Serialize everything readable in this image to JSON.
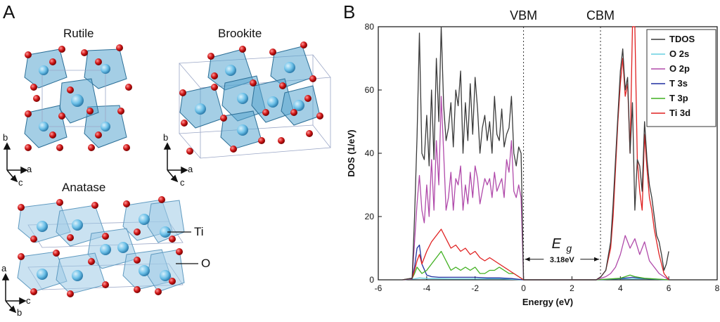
{
  "panels": {
    "a_label": "A",
    "b_label": "B"
  },
  "structures": {
    "rutile": "Rutile",
    "brookite": "Brookite",
    "anatase": "Anatase",
    "ti_label": "Ti",
    "o_label": "O",
    "rutile_axes": [
      "b",
      "a",
      "c"
    ],
    "brookite_axes": [
      "b",
      "a",
      "c"
    ],
    "anatase_axes": [
      "a",
      "c",
      "b"
    ]
  },
  "colors": {
    "tdos": "#3a3a3a",
    "o2s": "#66cfe0",
    "o2p": "#b04aaa",
    "t3s": "#1f2fa0",
    "t3p": "#40b020",
    "ti3d": "#e02020",
    "octahedron": "#5aa6cf",
    "ti_atom": "#6cc0e8",
    "o_atom": "#d01818"
  },
  "chart_data": {
    "type": "line",
    "title": "",
    "xlabel": "Energy (eV)",
    "ylabel": "DOS (1/eV)",
    "xlim": [
      -6,
      8
    ],
    "ylim": [
      0,
      80
    ],
    "xticks": [
      -6,
      -4,
      -2,
      0,
      2,
      4,
      6,
      8
    ],
    "yticks": [
      0,
      20,
      40,
      60,
      80
    ],
    "grid": false,
    "legend_position": "top-right",
    "annotations": {
      "vbm": "VBM",
      "cbm": "CBM",
      "vbm_x": 0.0,
      "cbm_x": 3.18,
      "gap_symbol_main": "E",
      "gap_symbol_sub": "g",
      "gap_value": "3.18eV"
    },
    "series": [
      {
        "name": "TDOS",
        "x": [
          -5.0,
          -4.6,
          -4.5,
          -4.4,
          -4.3,
          -4.2,
          -4.1,
          -4.0,
          -3.9,
          -3.8,
          -3.7,
          -3.6,
          -3.5,
          -3.4,
          -3.3,
          -3.2,
          -3.1,
          -3.0,
          -2.9,
          -2.8,
          -2.7,
          -2.6,
          -2.5,
          -2.4,
          -2.3,
          -2.2,
          -2.1,
          -2.0,
          -1.9,
          -1.8,
          -1.7,
          -1.6,
          -1.5,
          -1.4,
          -1.3,
          -1.2,
          -1.1,
          -1.0,
          -0.9,
          -0.8,
          -0.7,
          -0.6,
          -0.5,
          -0.4,
          -0.3,
          -0.2,
          -0.1,
          0.0,
          0.1,
          1.0,
          2.0,
          3.0,
          3.2,
          3.4,
          3.6,
          3.7,
          3.8,
          3.9,
          4.0,
          4.1,
          4.2,
          4.3,
          4.4,
          4.5,
          4.6,
          4.7,
          4.8,
          4.9,
          5.0,
          5.1,
          5.2,
          5.3,
          5.4,
          5.5,
          5.6,
          5.7,
          5.8,
          5.9,
          6.0
        ],
        "y": [
          0,
          0.5,
          20,
          45,
          78,
          40,
          38,
          52,
          36,
          60,
          38,
          70,
          50,
          80,
          55,
          44,
          48,
          56,
          42,
          60,
          55,
          66,
          40,
          56,
          44,
          62,
          46,
          64,
          54,
          40,
          48,
          52,
          44,
          50,
          40,
          58,
          46,
          44,
          54,
          42,
          46,
          48,
          58,
          40,
          36,
          42,
          40,
          0,
          0,
          0,
          0,
          0,
          1,
          3,
          12,
          24,
          38,
          52,
          66,
          73,
          60,
          64,
          40,
          56,
          22,
          38,
          36,
          28,
          50,
          38,
          30,
          26,
          20,
          14,
          12,
          8,
          3,
          5,
          9
        ]
      },
      {
        "name": "O 2s",
        "x": [
          -5.0,
          -4.5,
          -4.3,
          -4.0,
          -3.0,
          -2.0,
          -1.0,
          0.0,
          3.0,
          4.0,
          5.0,
          6.0
        ],
        "y": [
          0,
          0.3,
          0.6,
          0.4,
          0.3,
          0.3,
          0.3,
          0,
          0,
          0.3,
          0.3,
          0
        ]
      },
      {
        "name": "O 2p",
        "x": [
          -5.0,
          -4.6,
          -4.5,
          -4.4,
          -4.3,
          -4.2,
          -4.1,
          -4.0,
          -3.9,
          -3.8,
          -3.7,
          -3.6,
          -3.5,
          -3.4,
          -3.3,
          -3.2,
          -3.1,
          -3.0,
          -2.9,
          -2.8,
          -2.7,
          -2.6,
          -2.5,
          -2.4,
          -2.3,
          -2.2,
          -2.1,
          -2.0,
          -1.9,
          -1.8,
          -1.7,
          -1.6,
          -1.5,
          -1.4,
          -1.3,
          -1.2,
          -1.1,
          -1.0,
          -0.9,
          -0.8,
          -0.7,
          -0.6,
          -0.5,
          -0.4,
          -0.3,
          -0.2,
          -0.1,
          0.0,
          0.1,
          3.0,
          3.4,
          3.6,
          3.8,
          4.0,
          4.2,
          4.4,
          4.6,
          4.8,
          5.0,
          5.2,
          5.4,
          5.6,
          5.8,
          6.0
        ],
        "y": [
          0,
          0.3,
          12,
          24,
          33,
          22,
          18,
          30,
          20,
          38,
          22,
          44,
          30,
          58,
          40,
          22,
          26,
          34,
          22,
          32,
          30,
          36,
          22,
          30,
          24,
          34,
          26,
          36,
          32,
          24,
          28,
          32,
          30,
          32,
          26,
          34,
          28,
          30,
          32,
          26,
          38,
          34,
          44,
          28,
          26,
          30,
          26,
          0,
          0,
          0,
          1,
          2,
          4,
          8,
          14,
          10,
          13,
          8,
          12,
          6,
          4,
          2,
          1,
          0
        ]
      },
      {
        "name": "T 3s",
        "x": [
          -5.0,
          -4.6,
          -4.5,
          -4.4,
          -4.3,
          -4.2,
          -4.0,
          -3.8,
          -3.5,
          -3.0,
          -2.5,
          -2.0,
          -1.5,
          -1.0,
          -0.5,
          0.0,
          3.0,
          4.0,
          4.5,
          5.0,
          6.0
        ],
        "y": [
          0,
          0.5,
          4,
          10,
          11,
          5,
          1.5,
          1,
          0.8,
          0.8,
          0.8,
          0.8,
          0.6,
          0.6,
          0.4,
          0,
          0,
          0.4,
          0.8,
          0.4,
          0
        ]
      },
      {
        "name": "T 3p",
        "x": [
          -5.0,
          -4.6,
          -4.5,
          -4.4,
          -4.2,
          -4.0,
          -3.8,
          -3.6,
          -3.4,
          -3.2,
          -3.0,
          -2.8,
          -2.6,
          -2.4,
          -2.2,
          -2.0,
          -1.8,
          -1.6,
          -1.4,
          -1.2,
          -1.0,
          -0.8,
          -0.6,
          -0.4,
          -0.2,
          0.0,
          3.0,
          4.0,
          4.4,
          4.6,
          5.0,
          6.0
        ],
        "y": [
          0,
          0.5,
          2,
          4,
          2,
          3,
          5,
          7,
          9,
          6,
          3,
          4,
          3,
          4,
          3,
          4,
          2,
          2,
          3,
          3,
          4,
          3,
          2,
          2,
          1,
          0,
          0,
          0.5,
          1.5,
          1,
          0.5,
          0
        ]
      },
      {
        "name": "Ti 3d",
        "x": [
          -5.0,
          -4.6,
          -4.5,
          -4.4,
          -4.3,
          -4.2,
          -4.0,
          -3.8,
          -3.6,
          -3.4,
          -3.2,
          -3.0,
          -2.8,
          -2.6,
          -2.4,
          -2.2,
          -2.0,
          -1.8,
          -1.6,
          -1.4,
          -1.2,
          -1.0,
          -0.8,
          -0.6,
          -0.4,
          -0.2,
          0.0,
          3.0,
          3.2,
          3.4,
          3.6,
          3.7,
          3.8,
          3.9,
          4.0,
          4.1,
          4.2,
          4.3,
          4.4,
          4.5,
          4.6,
          4.7,
          4.8,
          4.9,
          5.0,
          5.1,
          5.2,
          5.3,
          5.4,
          5.5,
          5.6,
          5.8,
          6.0
        ],
        "y": [
          0,
          0.5,
          3,
          6,
          8,
          5,
          9,
          12,
          14,
          16,
          13,
          10,
          11,
          9,
          10,
          8,
          9,
          7,
          6,
          7,
          6,
          5,
          4,
          3,
          2,
          1,
          0,
          0,
          1,
          3,
          10,
          20,
          35,
          50,
          62,
          70,
          58,
          62,
          40,
          80,
          80,
          38,
          28,
          22,
          46,
          35,
          26,
          22,
          16,
          12,
          8,
          2,
          0
        ]
      }
    ]
  }
}
